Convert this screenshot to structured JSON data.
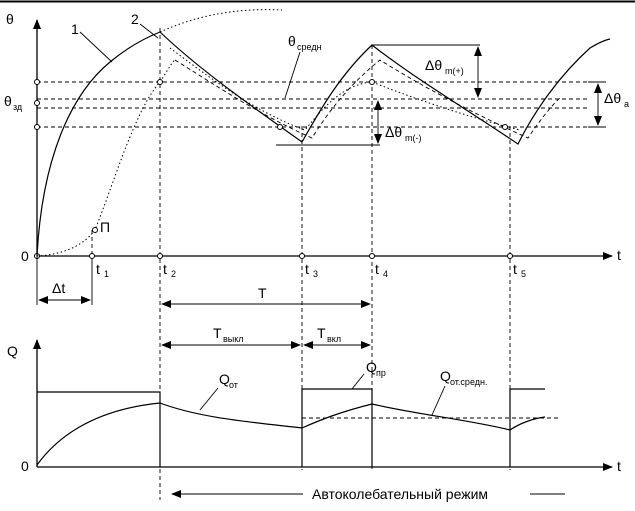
{
  "top_chart": {
    "y_axis_label": "θ",
    "x_axis_label": "t",
    "origin_label": "0",
    "setpoint_label": "θ",
    "setpoint_sub": "зд",
    "curve_labels": [
      "1",
      "2"
    ],
    "point_label": "П",
    "avg_label": "θ",
    "avg_sub": "средн",
    "dtheta_plus": "Δθ",
    "dtheta_plus_sub": "m(+)",
    "dtheta_minus": "Δθ",
    "dtheta_minus_sub": "m(-)",
    "dtheta_a": "Δθ",
    "dtheta_a_sub": "а",
    "ticks": [
      {
        "label": "t",
        "sub": "1"
      },
      {
        "label": "t",
        "sub": "2"
      },
      {
        "label": "t",
        "sub": "3"
      },
      {
        "label": "t",
        "sub": "4"
      },
      {
        "label": "t",
        "sub": "5"
      }
    ],
    "delta_t_label": "Δt",
    "period_label": "T",
    "t_off_label": "T",
    "t_off_sub": "выкл",
    "t_on_label": "T",
    "t_on_sub": "вкл"
  },
  "bottom_chart": {
    "y_axis_label": "Q",
    "x_axis_label": "t",
    "origin_label": "0",
    "q_from_label": "Q",
    "q_from_sub": "от",
    "q_supply_label": "Q",
    "q_supply_sub": "пр",
    "q_avg_label": "Q",
    "q_avg_sub": "от.средн."
  },
  "mode_label": "Автоколебательный режим"
}
